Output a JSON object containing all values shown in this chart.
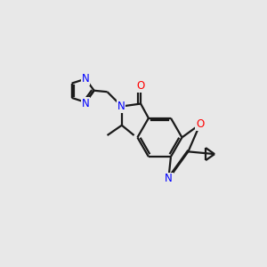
{
  "bg_color": "#e8e8e8",
  "bond_color": "#1a1a1a",
  "N_color": "#0000ff",
  "O_color": "#ff0000",
  "line_width": 1.6,
  "font_size": 8.5,
  "figsize": [
    3.0,
    3.0
  ],
  "dpi": 100,
  "xlim": [
    0,
    10
  ],
  "ylim": [
    2,
    8
  ]
}
